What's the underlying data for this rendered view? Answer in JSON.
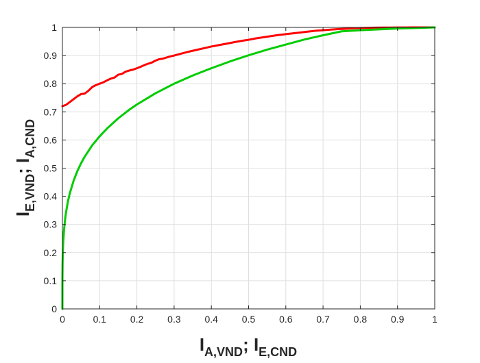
{
  "chart_data": {
    "type": "line",
    "title": "",
    "xlabel": {
      "parts": [
        {
          "text": "I",
          "sub": "A,VND"
        },
        {
          "text": "; I",
          "sub": "E,CND"
        }
      ]
    },
    "ylabel": {
      "parts": [
        {
          "text": "I",
          "sub": "E,VND"
        },
        {
          "text": "; I",
          "sub": "A,CND"
        }
      ]
    },
    "xlim": [
      0,
      1
    ],
    "ylim": [
      0,
      1
    ],
    "xticks": [
      "0",
      "0.1",
      "0.2",
      "0.3",
      "0.4",
      "0.5",
      "0.6",
      "0.7",
      "0.8",
      "0.9",
      "1"
    ],
    "yticks": [
      "0",
      "0.1",
      "0.2",
      "0.3",
      "0.4",
      "0.5",
      "0.6",
      "0.7",
      "0.8",
      "0.9",
      "1"
    ],
    "grid": true,
    "legend": "none",
    "series": [
      {
        "color": "#ff0000",
        "x": [
          0,
          0.01,
          0.02,
          0.03,
          0.04,
          0.05,
          0.06,
          0.07,
          0.08,
          0.09,
          0.1,
          0.11,
          0.12,
          0.13,
          0.14,
          0.15,
          0.16,
          0.17,
          0.18,
          0.19,
          0.2,
          0.21,
          0.22,
          0.23,
          0.24,
          0.25,
          0.26,
          0.27,
          0.28,
          0.29,
          0.3,
          0.32,
          0.34,
          0.36,
          0.38,
          0.4,
          0.42,
          0.44,
          0.46,
          0.48,
          0.5,
          0.52,
          0.54,
          0.56,
          0.58,
          0.6,
          0.62,
          0.64,
          0.66,
          0.68,
          0.7,
          0.72,
          0.74,
          0.76,
          0.78,
          0.8,
          0.82,
          0.84,
          0.86,
          0.88,
          0.9,
          0.92,
          0.94,
          0.96,
          0.98,
          1.0
        ],
        "y": [
          0.72,
          0.725,
          0.735,
          0.745,
          0.755,
          0.763,
          0.765,
          0.775,
          0.788,
          0.795,
          0.8,
          0.805,
          0.812,
          0.818,
          0.822,
          0.832,
          0.835,
          0.843,
          0.847,
          0.85,
          0.855,
          0.86,
          0.866,
          0.871,
          0.875,
          0.882,
          0.887,
          0.889,
          0.893,
          0.897,
          0.9,
          0.907,
          0.914,
          0.92,
          0.926,
          0.932,
          0.937,
          0.942,
          0.947,
          0.952,
          0.956,
          0.961,
          0.965,
          0.969,
          0.973,
          0.976,
          0.979,
          0.982,
          0.985,
          0.988,
          0.99,
          0.992,
          0.994,
          0.995,
          0.997,
          0.998,
          0.9985,
          0.999,
          0.9993,
          0.9995,
          0.9997,
          0.9998,
          0.9999,
          0.9999,
          1.0,
          1.0
        ]
      },
      {
        "color": "#00cc00",
        "x": [
          0,
          0.0001,
          0.0005,
          0.001,
          0.002,
          0.004,
          0.006,
          0.008,
          0.01,
          0.015,
          0.02,
          0.03,
          0.04,
          0.05,
          0.06,
          0.08,
          0.1,
          0.12,
          0.15,
          0.18,
          0.2,
          0.25,
          0.3,
          0.35,
          0.4,
          0.45,
          0.5,
          0.55,
          0.6,
          0.65,
          0.7,
          0.75,
          0.8,
          0.85,
          0.9,
          0.95,
          1.0
        ],
        "y": [
          0,
          0.105,
          0.162,
          0.193,
          0.23,
          0.274,
          0.303,
          0.326,
          0.345,
          0.383,
          0.411,
          0.455,
          0.489,
          0.517,
          0.541,
          0.581,
          0.613,
          0.641,
          0.677,
          0.708,
          0.726,
          0.766,
          0.8,
          0.829,
          0.855,
          0.879,
          0.901,
          0.921,
          0.939,
          0.957,
          0.972,
          0.986,
          0.99,
          0.993,
          0.996,
          0.998,
          1.0
        ]
      }
    ]
  }
}
